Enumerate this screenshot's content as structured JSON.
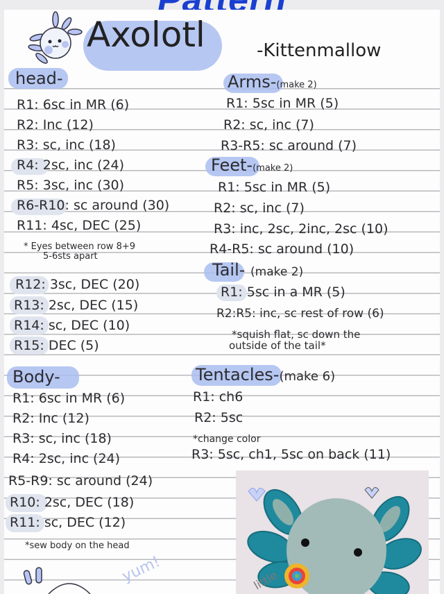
{
  "banner": "Pattern",
  "title": "Axolotl",
  "author": "-Kittenmallow",
  "head": {
    "heading": "head-",
    "rows": [
      "R1:  6sc in MR  (6)",
      "R2:  Inc   (12)",
      "R3:  sc, inc  (18)",
      "R4:  2sc, inc  (24)",
      "R5:  3sc, inc  (30)",
      "R6-R10:  sc around  (30)",
      "R11:  4sc, DEC  (25)"
    ],
    "note": [
      "* Eyes between row 8+9",
      "5-6sts apart"
    ],
    "rows2": [
      "R12:  3sc, DEC   (20)",
      "R13:  2sc, DEC   (15)",
      "R14:  sc, DEC    (10)",
      "R15:  DEC        (5)"
    ]
  },
  "body": {
    "heading": "Body-",
    "rows": [
      "R1: 6sc in MR  (6)",
      "R2: Inc   (12)",
      "R3: sc, inc  (18)",
      "R4: 2sc, inc  (24)",
      "R5-R9:  sc around (24)",
      "R10:  2sc, DEC  (18)",
      "R11:  sc, DEC  (12)"
    ],
    "note": "*sew body on the head"
  },
  "arms": {
    "heading": "Arms-",
    "sub": "(make 2)",
    "rows": [
      "R1:  5sc in MR (5)",
      "R2:  sc, inc  (7)",
      "R3-R5:  sc around  (7)"
    ]
  },
  "feet": {
    "heading": "Feet-",
    "sub": "(make 2)",
    "rows": [
      "R1:  5sc in MR (5)",
      "R2:  sc, inc  (7)",
      "R3:  inc, 2sc, 2inc, 2sc (10)",
      "R4-R5:  sc around  (10)"
    ]
  },
  "tail": {
    "heading": "Tail-",
    "sub": "(make 2)",
    "rows": [
      "R1:   5sc in a MR (5)",
      "R2:R5: inc, sc rest of row (6)"
    ],
    "note": [
      "*squish flat, sc down the",
      "outside of the tail*"
    ]
  },
  "tentacles": {
    "heading": "Tentacles-",
    "sub": "(make 6)",
    "rows": [
      "R1: ch6",
      "R2:  5sc"
    ],
    "note": "*change color",
    "rows2": [
      "R3: 5sc, ch1, 5sc on back (11)"
    ]
  },
  "doodle": {
    "yum": "yum!",
    "photo_watermark": "little"
  },
  "colors": {
    "banner": "#1a3fd0",
    "highlight": "#a9bdf0",
    "yarn_body": "#9fb9b6",
    "yarn_tentacle": "#1f8a9e"
  }
}
